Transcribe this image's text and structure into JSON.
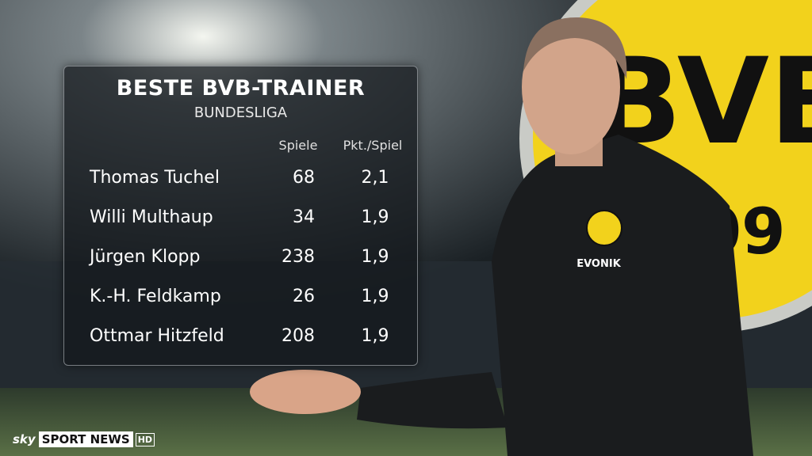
{
  "header": {
    "title": "BESTE BVB-TRAINER",
    "subtitle": "BUNDESLIGA"
  },
  "table": {
    "columns": [
      "Spiele",
      "Pkt./Spiel"
    ],
    "rows": [
      [
        "Thomas Tuchel",
        "68",
        "2,1"
      ],
      [
        "Willi Multhaup",
        "34",
        "1,9"
      ],
      [
        "Jürgen Klopp",
        "238",
        "1,9"
      ],
      [
        "K.-H. Feldkamp",
        "26",
        "1,9"
      ],
      [
        "Ottmar Hitzfeld",
        "208",
        "1,9"
      ]
    ]
  },
  "emblem": {
    "letters": "BVB",
    "number": "09",
    "sponsor": "EVONIK"
  },
  "broadcaster": {
    "brand": "sky",
    "channel": "SPORT NEWS",
    "format": "HD"
  }
}
